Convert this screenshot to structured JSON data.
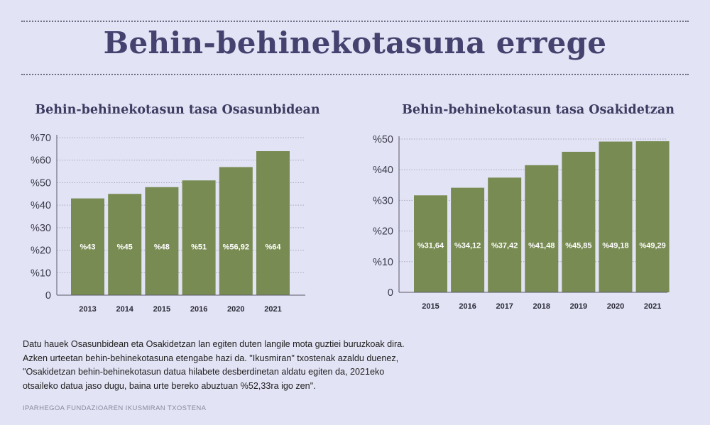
{
  "page": {
    "title": "Behin-behinekotasuna errege",
    "footer_lines": [
      "Datu hauek Osasunbidean eta Osakidetzan lan egiten duten langile mota guztiei buruzkoak dira.",
      "Azken urteetan behin-behinekotasuna etengabe hazi da. \"Ikusmiran\" txostenak azaldu duenez,",
      "\"Osakidetzan behin-behinekotasun datua hilabete desberdinetan aldatu egiten da, 2021eko",
      "otsaileko datua jaso dugu, baina urte bereko abuztuan %52,33ra igo zen\"."
    ],
    "source": "IPARHEGOA FUNDAZIOAREN IKUSMIRAN TXOSTENA",
    "colors": {
      "background": "#e2e3f4",
      "bar": "#788b52",
      "title": "#45426f",
      "bar_label": "#ffffff"
    }
  },
  "chart_data": [
    {
      "type": "bar",
      "title": "Behin-behinekotasun tasa Osasunbidean",
      "categories": [
        "2013",
        "2014",
        "2015",
        "2016",
        "2020",
        "2021"
      ],
      "values": [
        43,
        45,
        48,
        51,
        56.92,
        64
      ],
      "value_labels": [
        "%43",
        "%45",
        "%48",
        "%51",
        "%56,92",
        "%64"
      ],
      "ylim": [
        0,
        70
      ],
      "yticks": [
        0,
        10,
        20,
        30,
        40,
        50,
        60,
        70
      ],
      "ytick_labels": [
        "0",
        "%10",
        "%20",
        "%30",
        "%40",
        "%50",
        "%60",
        "%70"
      ],
      "xlabel": "",
      "ylabel": "",
      "grid": true
    },
    {
      "type": "bar",
      "title": "Behin-behinekotasun tasa Osakidetzan",
      "categories": [
        "2015",
        "2016",
        "2017",
        "2018",
        "2019",
        "2020",
        "2021"
      ],
      "values": [
        31.64,
        34.12,
        37.42,
        41.48,
        45.85,
        49.18,
        49.29
      ],
      "value_labels": [
        "%31,64",
        "%34,12",
        "%37,42",
        "%41,48",
        "%45,85",
        "%49,18",
        "%49,29"
      ],
      "ylim": [
        0,
        50
      ],
      "yticks": [
        0,
        10,
        20,
        30,
        40,
        50
      ],
      "ytick_labels": [
        "0",
        "%10",
        "%20",
        "%30",
        "%40",
        "%50"
      ],
      "xlabel": "",
      "ylabel": "",
      "grid": true
    }
  ]
}
